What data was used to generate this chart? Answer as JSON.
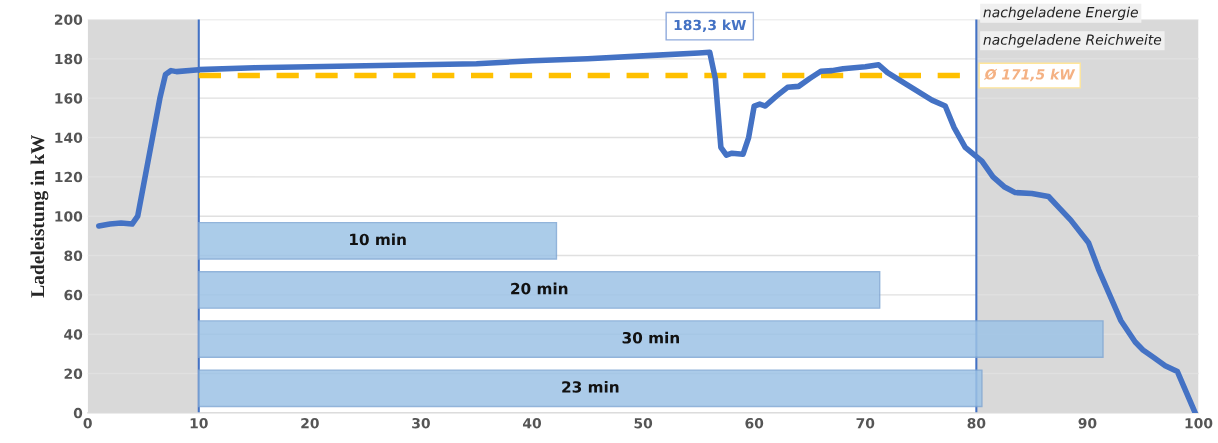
{
  "chart_data": [
    {
      "type": "line",
      "ylabel": "Ladeleistung in kW",
      "x": [
        1,
        2,
        3,
        4,
        4.5,
        5.5,
        6.5,
        7,
        7.5,
        8,
        10,
        15,
        20,
        25,
        30,
        35,
        40,
        45,
        50,
        55,
        56,
        56.5,
        57,
        57.5,
        58,
        59,
        59.5,
        60,
        60.5,
        61,
        62,
        63,
        64,
        65,
        66,
        67,
        68,
        70,
        71.2,
        72,
        74,
        76,
        77.2,
        78,
        79,
        80.5,
        81.5,
        82.5,
        83.5,
        85,
        86.5,
        87.5,
        88.5,
        90.1,
        91,
        92,
        93,
        94.3,
        95,
        96,
        97,
        98.1,
        99.7
      ],
      "series": [
        {
          "color": "#4472c4",
          "values": [
            95,
            96,
            96.5,
            96,
            100,
            130,
            160,
            172,
            174,
            173.5,
            174.5,
            175.5,
            176,
            176.5,
            177,
            177.5,
            179,
            180,
            181.5,
            183,
            183.3,
            170,
            135,
            131,
            132,
            131.5,
            140,
            156,
            157,
            156,
            161,
            165.5,
            166,
            170,
            173.7,
            174,
            175,
            176,
            177,
            173,
            166,
            159,
            156,
            145,
            135,
            128,
            120,
            115,
            112,
            111.5,
            110,
            104,
            98,
            86.5,
            73,
            60,
            47,
            36,
            32,
            28,
            24,
            21,
            0
          ]
        }
      ],
      "xlim": [
        0,
        100
      ],
      "ylim": [
        0,
        200
      ],
      "xticks": [
        0,
        10,
        20,
        30,
        40,
        50,
        60,
        70,
        80,
        90,
        100
      ],
      "yticks": [
        0,
        20,
        40,
        60,
        80,
        100,
        120,
        140,
        160,
        180,
        200
      ],
      "grid": "y",
      "legend": false,
      "bands": [
        {
          "axis": "x",
          "from": 0,
          "to": 10,
          "color": "#d9d9d9"
        },
        {
          "axis": "x",
          "from": 80,
          "to": 100,
          "color": "#d9d9d9"
        }
      ],
      "ref_lines": [
        {
          "axis": "x",
          "value": 10,
          "color": "#4472c4",
          "line_style": "solid"
        },
        {
          "axis": "x",
          "value": 80,
          "color": "#4472c4",
          "line_style": "solid"
        },
        {
          "axis": "y",
          "value": 171.5,
          "label": "Ø 171,5 kW",
          "color": "#ffc000",
          "line_style": "dashed"
        }
      ],
      "annotations": [
        {
          "text": "183,3 kW",
          "x": 56,
          "y": 183.3
        },
        "nachgeladene Energie",
        "nachgeladene Reichweite"
      ]
    },
    {
      "type": "bar",
      "orientation": "horizontal",
      "categories": [
        null,
        null,
        null,
        null,
        null,
        null,
        null,
        null
      ],
      "values": [
        null,
        null,
        null,
        null,
        32.2,
        61.3,
        81.4,
        70.5
      ],
      "base": [
        null,
        null,
        null,
        null,
        10,
        10,
        10,
        10
      ],
      "color": "#9dc3e6",
      "xlim": [
        0,
        100
      ],
      "tick_labels": false,
      "annotations": [
        "10 min",
        "20 min",
        "30 min",
        "23 min"
      ]
    }
  ]
}
